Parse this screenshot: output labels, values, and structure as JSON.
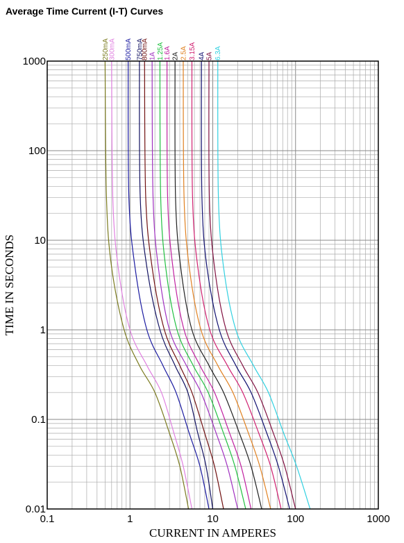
{
  "chart_data": {
    "type": "line",
    "title": "Average Time Current (I-T) Curves",
    "xlabel": "CURRENT IN AMPERES",
    "ylabel": "TIME IN SECONDS",
    "xscale": "log",
    "yscale": "log",
    "xlim": [
      0.1,
      1000
    ],
    "ylim": [
      0.01,
      1000
    ],
    "x_ticks": [
      "0.1",
      "1",
      "10",
      "100",
      "1000"
    ],
    "y_ticks": [
      "0.01",
      "0.1",
      "1",
      "10",
      "100",
      "1000"
    ],
    "grid": true,
    "series": [
      {
        "name": "250mA",
        "color": "#7a7a1e",
        "points": [
          [
            0.5,
            1000
          ],
          [
            0.52,
            30
          ],
          [
            0.6,
            5
          ],
          [
            0.85,
            1
          ],
          [
            1.3,
            0.4
          ],
          [
            2.0,
            0.2
          ],
          [
            3.0,
            0.07
          ],
          [
            4.0,
            0.03
          ],
          [
            5.1,
            0.01
          ]
        ]
      },
      {
        "name": "300mA",
        "color": "#e080e0",
        "points": [
          [
            0.6,
            1000
          ],
          [
            0.62,
            30
          ],
          [
            0.72,
            5
          ],
          [
            1.0,
            1
          ],
          [
            1.6,
            0.4
          ],
          [
            2.4,
            0.2
          ],
          [
            3.4,
            0.07
          ],
          [
            4.4,
            0.03
          ],
          [
            5.6,
            0.01
          ]
        ]
      },
      {
        "name": "500mA",
        "color": "#1a1aa0",
        "points": [
          [
            0.95,
            1000
          ],
          [
            0.97,
            30
          ],
          [
            1.15,
            5
          ],
          [
            1.6,
            1
          ],
          [
            2.5,
            0.4
          ],
          [
            3.6,
            0.2
          ],
          [
            5.2,
            0.07
          ],
          [
            7.0,
            0.03
          ],
          [
            9.0,
            0.01
          ]
        ]
      },
      {
        "name": "750mA",
        "color": "#101060",
        "points": [
          [
            1.3,
            1000
          ],
          [
            1.33,
            30
          ],
          [
            1.6,
            5
          ],
          [
            2.3,
            1
          ],
          [
            3.5,
            0.4
          ],
          [
            5.0,
            0.2
          ],
          [
            6.6,
            0.07
          ],
          [
            8.3,
            0.03
          ],
          [
            10.0,
            0.01
          ]
        ]
      },
      {
        "name": "800mA",
        "color": "#701010",
        "points": [
          [
            1.5,
            1000
          ],
          [
            1.55,
            30
          ],
          [
            1.85,
            5
          ],
          [
            2.6,
            1
          ],
          [
            4.0,
            0.4
          ],
          [
            5.6,
            0.2
          ],
          [
            8.0,
            0.07
          ],
          [
            10.5,
            0.03
          ],
          [
            13.5,
            0.01
          ]
        ]
      },
      {
        "name": "1A",
        "color": "#a030c0",
        "points": [
          [
            1.85,
            1000
          ],
          [
            1.9,
            30
          ],
          [
            2.2,
            5
          ],
          [
            3.0,
            1
          ],
          [
            4.8,
            0.4
          ],
          [
            7.2,
            0.2
          ],
          [
            11,
            0.07
          ],
          [
            15,
            0.03
          ],
          [
            20,
            0.01
          ]
        ]
      },
      {
        "name": "1.25A",
        "color": "#20c040",
        "points": [
          [
            2.3,
            1000
          ],
          [
            2.35,
            30
          ],
          [
            2.7,
            5
          ],
          [
            3.7,
            1
          ],
          [
            5.8,
            0.4
          ],
          [
            8.8,
            0.2
          ],
          [
            13.5,
            0.07
          ],
          [
            18.5,
            0.03
          ],
          [
            25,
            0.01
          ]
        ]
      },
      {
        "name": "1.6A",
        "color": "#c020a0",
        "points": [
          [
            2.8,
            1000
          ],
          [
            2.85,
            30
          ],
          [
            3.3,
            5
          ],
          [
            4.5,
            1
          ],
          [
            7.0,
            0.4
          ],
          [
            10.5,
            0.2
          ],
          [
            16,
            0.07
          ],
          [
            22,
            0.03
          ],
          [
            29,
            0.01
          ]
        ]
      },
      {
        "name": "2A",
        "color": "#202020",
        "points": [
          [
            3.5,
            1000
          ],
          [
            3.55,
            30
          ],
          [
            4.1,
            5
          ],
          [
            5.6,
            1
          ],
          [
            9.0,
            0.4
          ],
          [
            13.5,
            0.2
          ],
          [
            21,
            0.07
          ],
          [
            29,
            0.03
          ],
          [
            39,
            0.01
          ]
        ]
      },
      {
        "name": "2.5A",
        "color": "#e08020",
        "points": [
          [
            4.4,
            1000
          ],
          [
            4.5,
            30
          ],
          [
            5.2,
            5
          ],
          [
            7.2,
            1
          ],
          [
            11.5,
            0.4
          ],
          [
            17.5,
            0.2
          ],
          [
            27,
            0.07
          ],
          [
            37,
            0.03
          ],
          [
            50,
            0.01
          ]
        ]
      },
      {
        "name": "3.15A",
        "color": "#d02070",
        "points": [
          [
            5.6,
            1000
          ],
          [
            5.7,
            30
          ],
          [
            6.6,
            5
          ],
          [
            9.2,
            1
          ],
          [
            15,
            0.4
          ],
          [
            23,
            0.2
          ],
          [
            36,
            0.07
          ],
          [
            50,
            0.03
          ],
          [
            67,
            0.01
          ]
        ]
      },
      {
        "name": "4A",
        "color": "#101070",
        "points": [
          [
            7.3,
            1000
          ],
          [
            7.4,
            30
          ],
          [
            8.5,
            5
          ],
          [
            12,
            1
          ],
          [
            19,
            0.4
          ],
          [
            29,
            0.2
          ],
          [
            45,
            0.07
          ],
          [
            62,
            0.03
          ],
          [
            85,
            0.01
          ]
        ]
      },
      {
        "name": "5A",
        "color": "#801040",
        "points": [
          [
            9.0,
            1000
          ],
          [
            9.1,
            30
          ],
          [
            10.5,
            5
          ],
          [
            14.5,
            1
          ],
          [
            23,
            0.4
          ],
          [
            35,
            0.2
          ],
          [
            54,
            0.07
          ],
          [
            74,
            0.03
          ],
          [
            100,
            0.01
          ]
        ]
      },
      {
        "name": "6.3A",
        "color": "#30d0e0",
        "points": [
          [
            11.5,
            1000
          ],
          [
            11.7,
            30
          ],
          [
            13.5,
            5
          ],
          [
            19,
            1
          ],
          [
            31,
            0.4
          ],
          [
            47,
            0.2
          ],
          [
            72,
            0.07
          ],
          [
            103,
            0.03
          ],
          [
            150,
            0.01
          ]
        ]
      }
    ]
  }
}
